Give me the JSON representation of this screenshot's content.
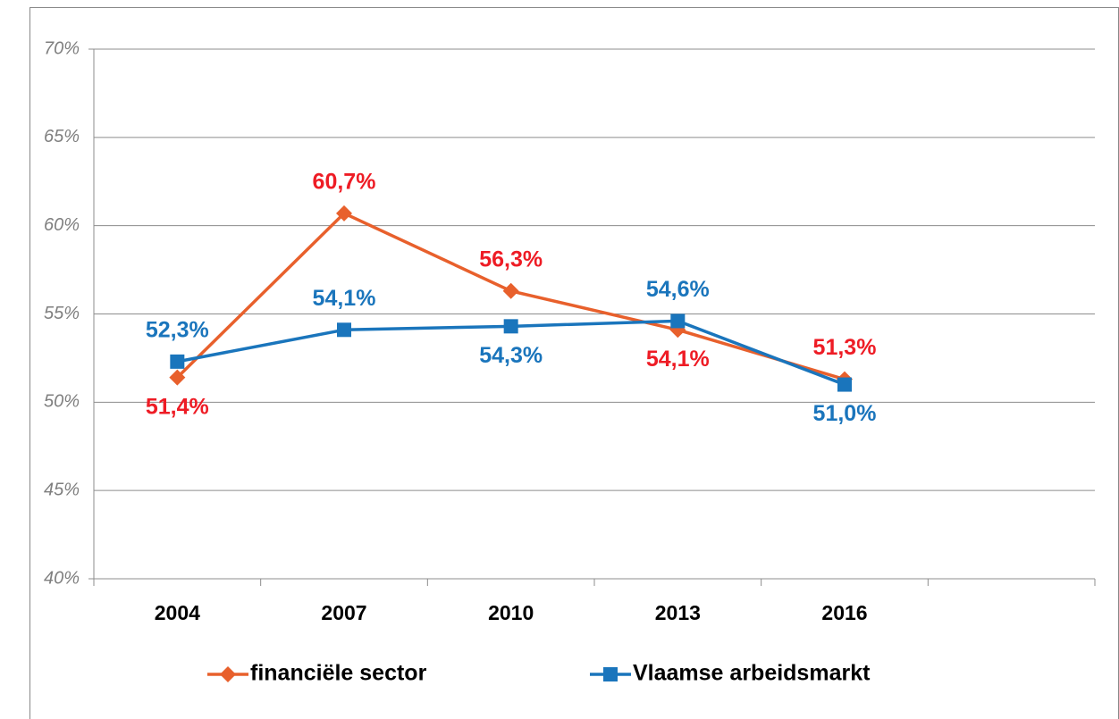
{
  "chart_data": {
    "type": "line",
    "categories": [
      "2004",
      "2007",
      "2010",
      "2013",
      "2016",
      null
    ],
    "series": [
      {
        "name": "financiële sector",
        "color": "#e8602c",
        "label_color": "#ee1c25",
        "marker": "diamond",
        "values": [
          51.4,
          60.7,
          56.3,
          54.1,
          51.3,
          null
        ],
        "value_labels": [
          "51,4%",
          "60,7%",
          "56,3%",
          "54,1%",
          "51,3%",
          null
        ]
      },
      {
        "name": "Vlaamse arbeidsmarkt",
        "color": "#1a75bc",
        "label_color": "#1a75bc",
        "marker": "square",
        "values": [
          52.3,
          54.1,
          54.3,
          54.6,
          51.0,
          null
        ],
        "value_labels": [
          "52,3%",
          "54,1%",
          "54,3%",
          "54,6%",
          "51,0%",
          null
        ]
      }
    ],
    "ylim": [
      40,
      70
    ],
    "yticks": [
      {
        "value": 40,
        "label": "40%"
      },
      {
        "value": 45,
        "label": "45%"
      },
      {
        "value": 50,
        "label": "50%"
      },
      {
        "value": 55,
        "label": "55%"
      },
      {
        "value": 60,
        "label": "60%"
      },
      {
        "value": 65,
        "label": "65%"
      },
      {
        "value": 70,
        "label": "70%"
      }
    ],
    "grid": true,
    "legend": "bottom"
  }
}
